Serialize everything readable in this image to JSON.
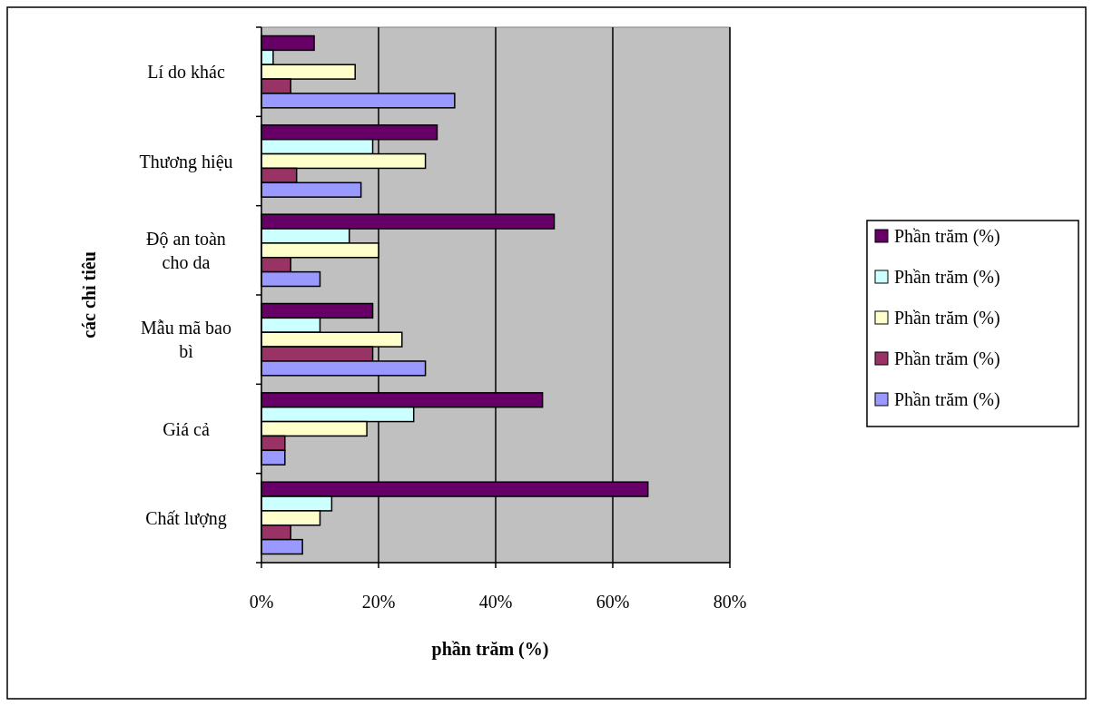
{
  "chart_data": {
    "type": "bar",
    "orientation": "horizontal",
    "xlabel": "phần trăm (%)",
    "ylabel": "các chỉ tiêu",
    "categories": [
      "Lí do khác",
      "Thương hiệu",
      "Độ an toàn cho da",
      "Mẫu mã bao bì",
      "Giá cả",
      "Chất lượng"
    ],
    "series": [
      {
        "name": "Phần trăm (%)",
        "color": "#660066",
        "values": [
          9,
          30,
          50,
          19,
          48,
          66
        ]
      },
      {
        "name": "Phần trăm (%)",
        "color": "#ccffff",
        "values": [
          2,
          19,
          15,
          10,
          26,
          12
        ]
      },
      {
        "name": "Phần trăm (%)",
        "color": "#ffffcc",
        "values": [
          16,
          28,
          20,
          24,
          18,
          10
        ]
      },
      {
        "name": "Phần trăm (%)",
        "color": "#993366",
        "values": [
          5,
          6,
          5,
          19,
          4,
          5
        ]
      },
      {
        "name": "Phần trăm (%)",
        "color": "#9999ff",
        "values": [
          33,
          17,
          10,
          28,
          4,
          7
        ]
      }
    ],
    "xlim": [
      0,
      80
    ],
    "xticks": [
      {
        "value": 0,
        "label": "0%"
      },
      {
        "value": 20,
        "label": "20%"
      },
      {
        "value": 40,
        "label": "40%"
      },
      {
        "value": 60,
        "label": "60%"
      },
      {
        "value": 80,
        "label": "80%"
      }
    ],
    "grid": "x",
    "legend": "right"
  }
}
